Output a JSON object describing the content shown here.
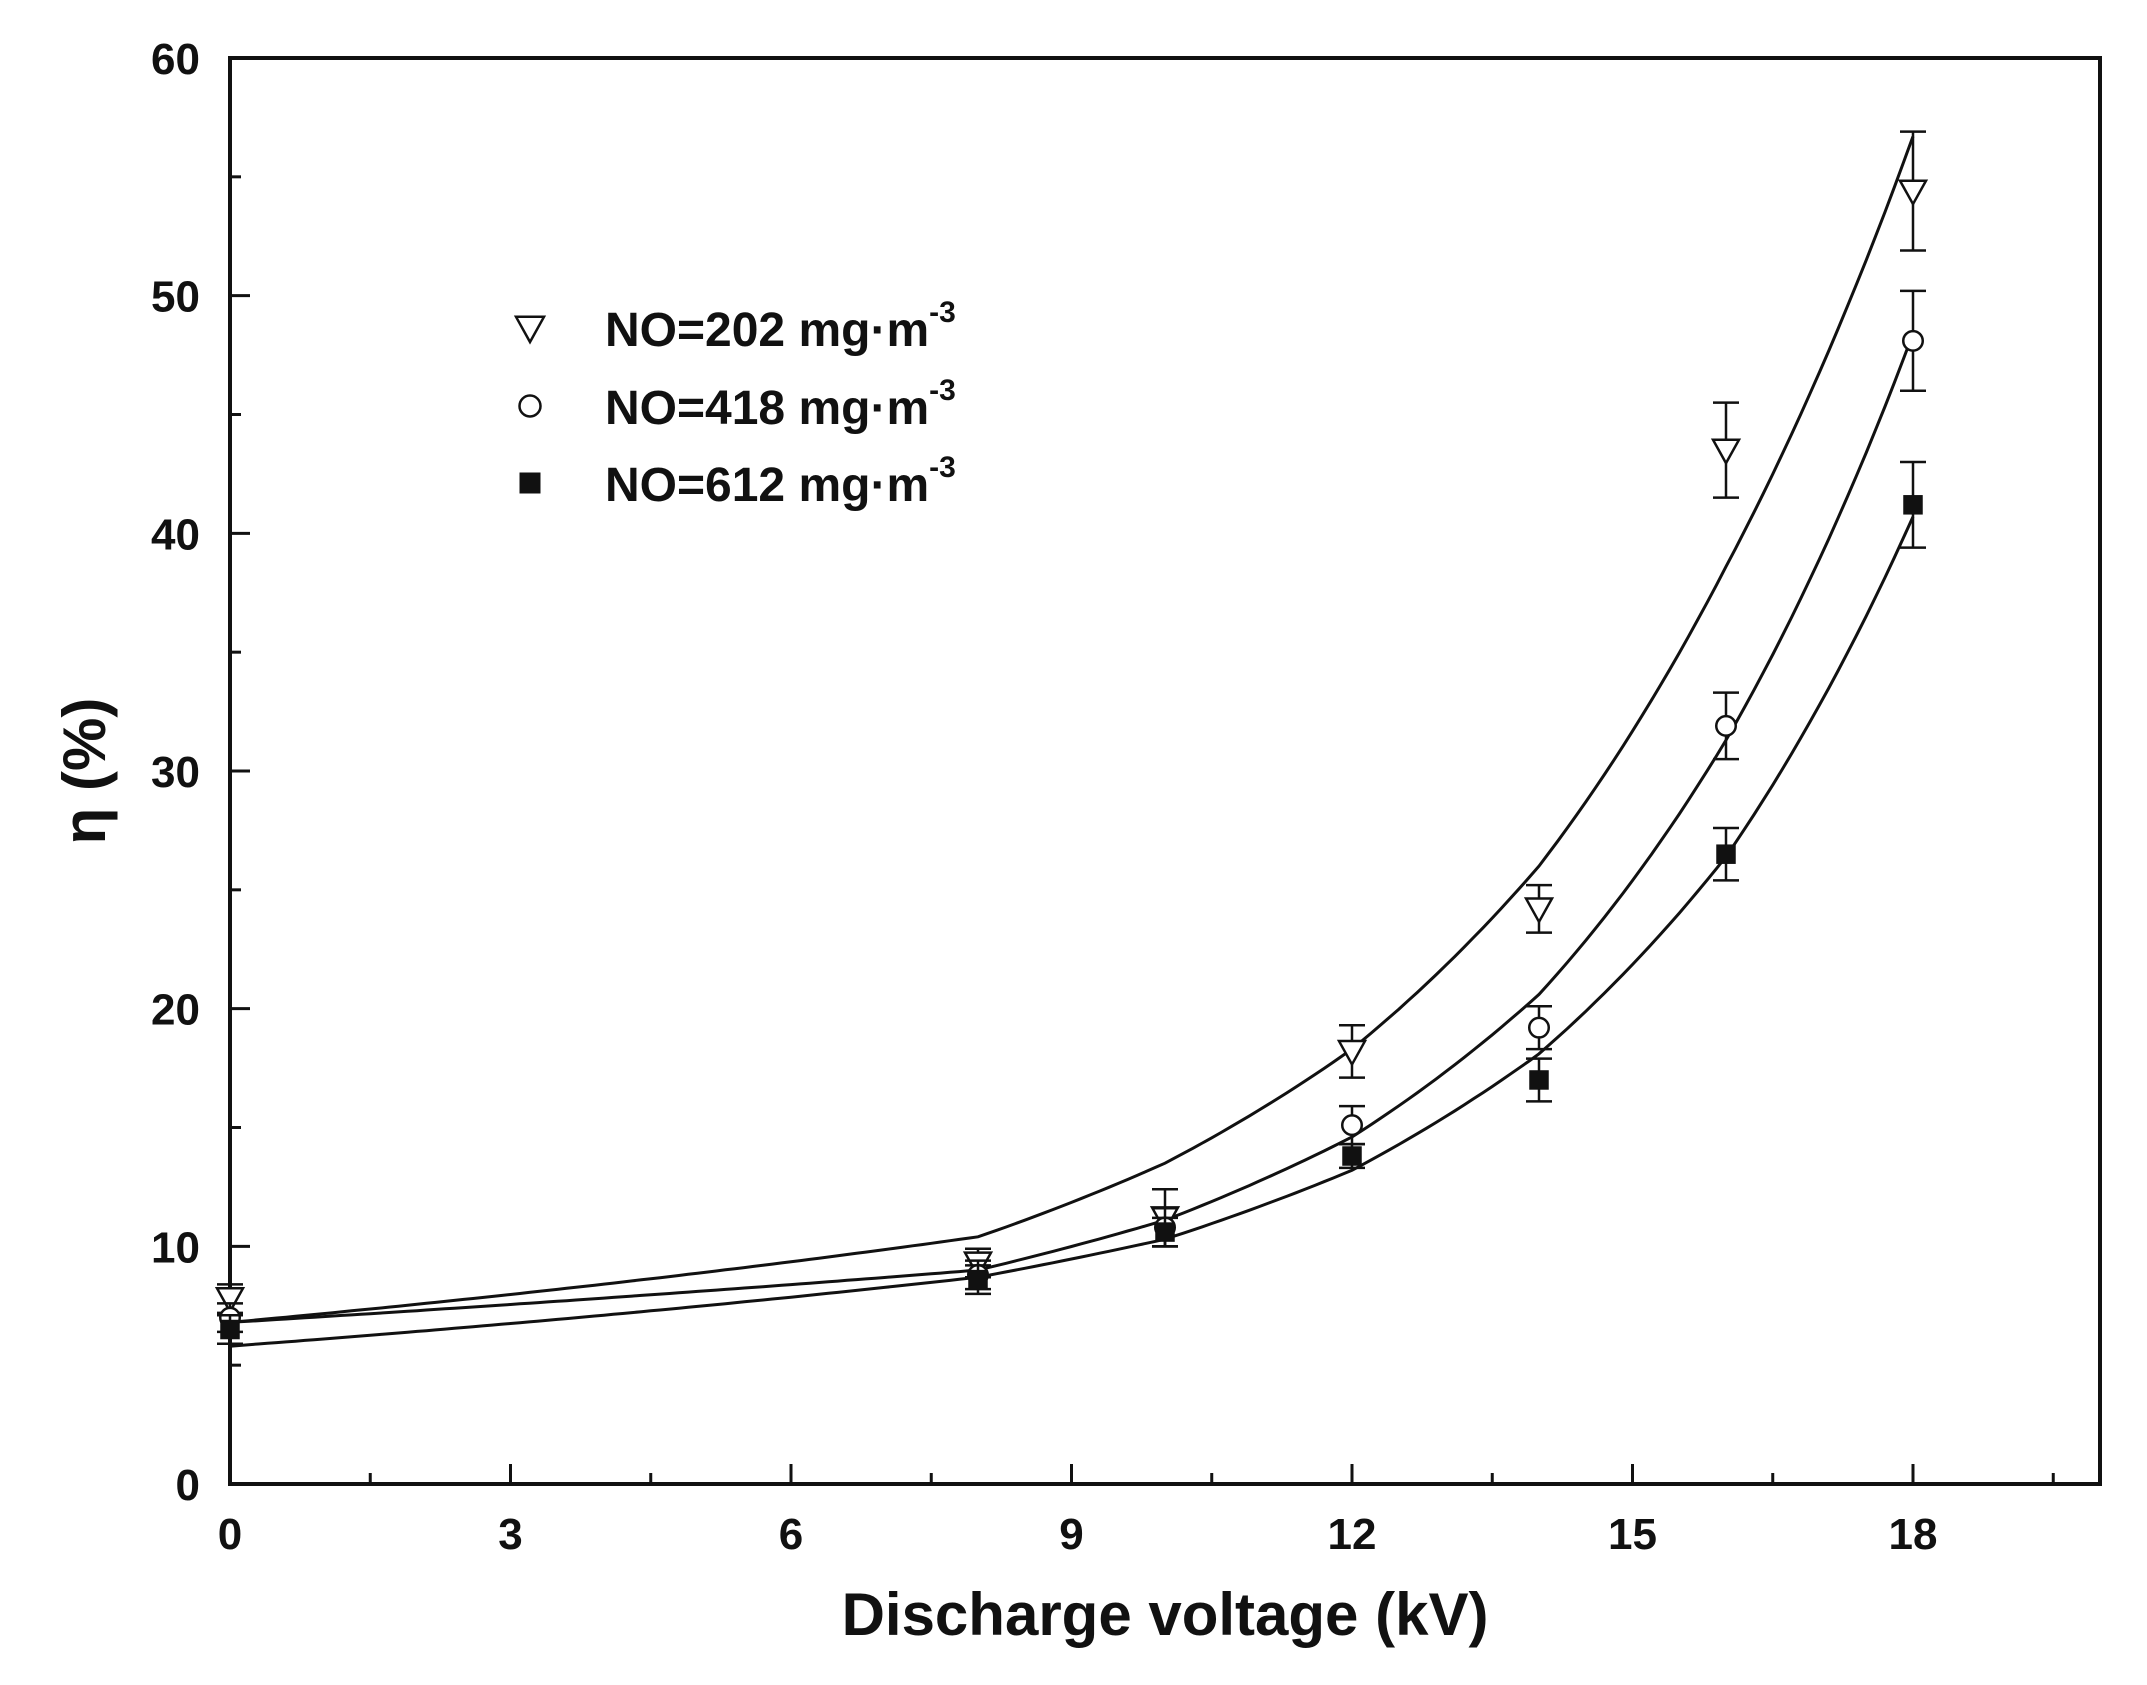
{
  "chart_data": {
    "type": "scatter",
    "title": "",
    "xlabel": "Discharge voltage (kV)",
    "ylabel": "η (%)",
    "xlim": [
      0,
      20
    ],
    "ylim": [
      0,
      60
    ],
    "x_ticks": [
      0,
      3,
      6,
      9,
      12,
      15,
      18
    ],
    "y_ticks": [
      0,
      10,
      20,
      30,
      40,
      50,
      60
    ],
    "x_tick_labels": [
      "0",
      "3",
      "6",
      "9",
      "12",
      "15",
      "18"
    ],
    "y_tick_labels": [
      "0",
      "10",
      "20",
      "30",
      "40",
      "50",
      "60"
    ],
    "grid": false,
    "legend_position": "upper-left",
    "series": [
      {
        "name": "NO=202  mg·m-3",
        "legend_label": "NO=202  mg·m",
        "legend_sup": "-3",
        "marker": "triangle-down-open",
        "x": [
          0,
          8,
          10,
          12,
          14,
          16,
          18
        ],
        "y": [
          7.8,
          9.3,
          11.2,
          18.2,
          24.2,
          43.5,
          54.4
        ],
        "err": [
          0.6,
          0.6,
          1.2,
          1.1,
          1.0,
          2.0,
          2.5
        ],
        "fit": [
          6.8,
          10.4,
          13.5,
          18.3,
          26.0,
          38.6,
          56.7
        ]
      },
      {
        "name": "NO=418 mg·m-3",
        "legend_label": "NO=418 mg·m",
        "legend_sup": "-3",
        "marker": "circle-open",
        "x": [
          0,
          8,
          10,
          12,
          14,
          16,
          18
        ],
        "y": [
          7.0,
          8.8,
          10.8,
          15.1,
          19.2,
          31.9,
          48.1
        ],
        "err": [
          0.6,
          0.6,
          0.8,
          0.8,
          0.9,
          1.4,
          2.1
        ],
        "fit": [
          6.8,
          9.0,
          11.1,
          14.6,
          20.6,
          31.3,
          48.4
        ]
      },
      {
        "name": "NO=612 mg·m-3",
        "legend_label": "NO=612 mg·m",
        "legend_sup": "-3",
        "marker": "square-filled",
        "x": [
          0,
          8,
          10,
          12,
          14,
          16,
          18
        ],
        "y": [
          6.5,
          8.6,
          10.6,
          13.8,
          17.0,
          26.5,
          41.2
        ],
        "err": [
          0.6,
          0.6,
          0.6,
          0.5,
          0.9,
          1.1,
          1.8
        ],
        "fit": [
          5.8,
          8.7,
          10.3,
          13.2,
          18.1,
          26.4,
          40.7
        ]
      }
    ]
  }
}
